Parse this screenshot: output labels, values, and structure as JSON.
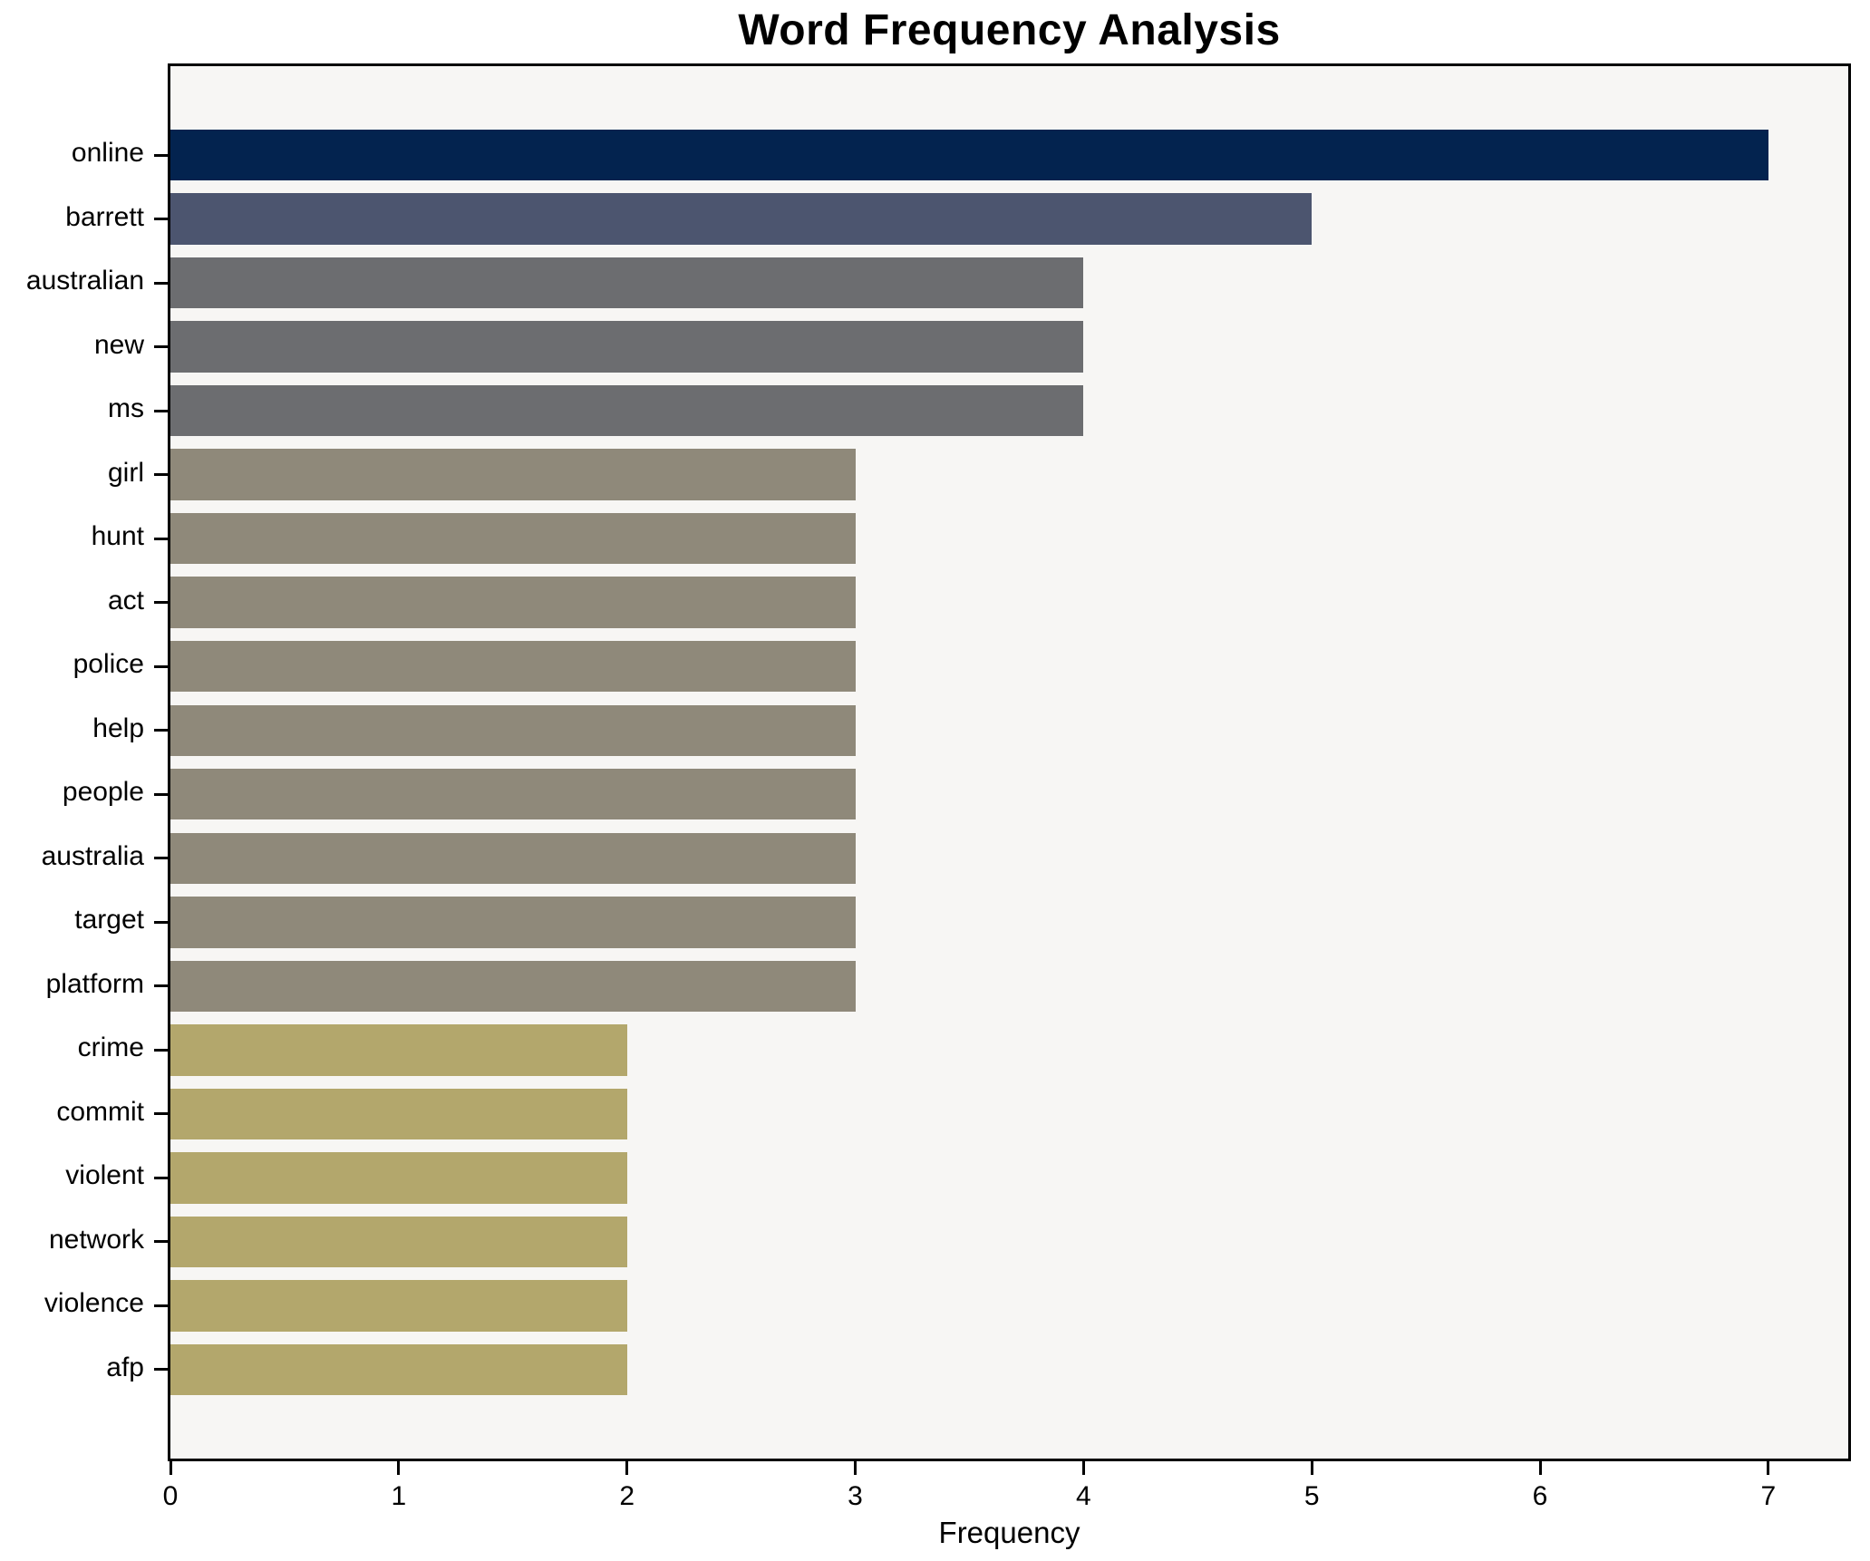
{
  "figure": {
    "background": "#ffffff",
    "plot_background": "#f7f6f4",
    "axis_color": "#000000"
  },
  "chart_data": {
    "type": "bar",
    "orientation": "horizontal",
    "title": "Word Frequency Analysis",
    "xlabel": "Frequency",
    "ylabel": "",
    "categories": [
      "online",
      "barrett",
      "australian",
      "new",
      "ms",
      "girl",
      "hunt",
      "act",
      "police",
      "help",
      "people",
      "australia",
      "target",
      "platform",
      "crime",
      "commit",
      "violent",
      "network",
      "violence",
      "afp"
    ],
    "values": [
      7,
      5,
      4,
      4,
      4,
      3,
      3,
      3,
      3,
      3,
      3,
      3,
      3,
      3,
      2,
      2,
      2,
      2,
      2,
      2
    ],
    "bar_colors": [
      "#03234f",
      "#4c556f",
      "#6c6d70",
      "#6c6d70",
      "#6c6d70",
      "#8f897a",
      "#8f897a",
      "#8f897a",
      "#8f897a",
      "#8f897a",
      "#8f897a",
      "#8f897a",
      "#8f897a",
      "#8f897a",
      "#b3a76c",
      "#b3a76c",
      "#b3a76c",
      "#b3a76c",
      "#b3a76c",
      "#b3a76c"
    ],
    "xlim": [
      0,
      7.35
    ],
    "xticks": [
      0,
      1,
      2,
      3,
      4,
      5,
      6,
      7
    ],
    "grid": false,
    "legend": null,
    "bar_relative_height": 0.8
  }
}
